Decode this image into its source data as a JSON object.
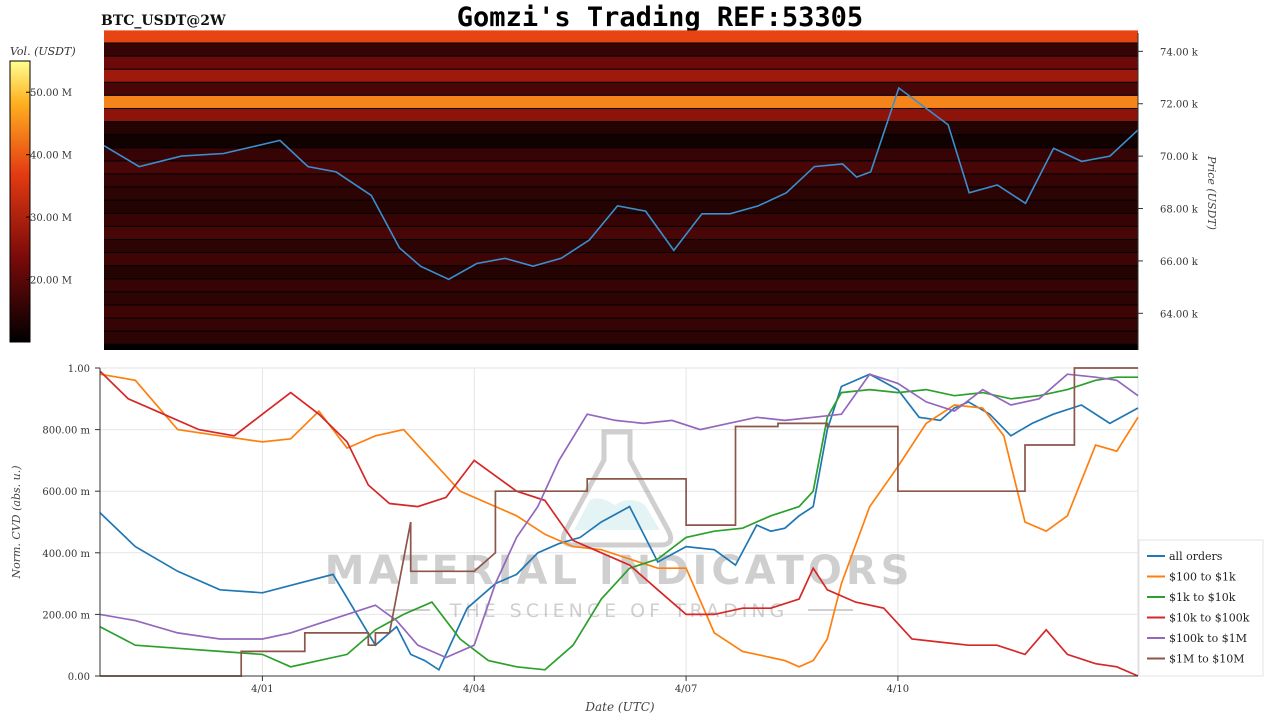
{
  "header": {
    "symbol": "BTC_USDT@2W",
    "title": "Gomzi's Trading REF:53305"
  },
  "watermark": {
    "brand": "MATERIAL INDICATORS",
    "tagline": "THE SCIENCE OF TRADING"
  },
  "colors": {
    "price_line": "#3a8fd0",
    "heatmap_bg": "#000000",
    "series": [
      "#1f77b4",
      "#ff7f0e",
      "#2ca02c",
      "#d62728",
      "#9467bd",
      "#8c564b"
    ]
  },
  "chart_data": [
    {
      "type": "heatmap",
      "title": "BTC_USDT@2W",
      "colorbar": {
        "label": "Vol. (USDT)",
        "ticks": [
          "50.00 M",
          "40.00 M",
          "30.00 M",
          "20.00 M"
        ],
        "tick_values": [
          50,
          40,
          30,
          20
        ],
        "range": [
          10,
          55
        ]
      },
      "ylabel": "Price (USDT)",
      "yticks": [
        "74.00 k",
        "72.00 k",
        "70.00 k",
        "68.00 k",
        "66.00 k",
        "64.00 k"
      ],
      "ytick_values": [
        74,
        72,
        70,
        68,
        66,
        64
      ],
      "ylim": [
        62.6,
        74.7
      ],
      "xlim": [
        -2.3,
        12.4
      ],
      "bands": [
        {
          "y": 74.55,
          "v": 38
        },
        {
          "y": 74.05,
          "v": 16
        },
        {
          "y": 73.55,
          "v": 22
        },
        {
          "y": 73.05,
          "v": 28
        },
        {
          "y": 72.55,
          "v": 18
        },
        {
          "y": 72.05,
          "v": 44
        },
        {
          "y": 71.55,
          "v": 26
        },
        {
          "y": 71.05,
          "v": 14
        },
        {
          "y": 70.55,
          "v": 12
        },
        {
          "y": 70.05,
          "v": 16
        },
        {
          "y": 69.55,
          "v": 18
        },
        {
          "y": 69.05,
          "v": 16
        },
        {
          "y": 68.55,
          "v": 15
        },
        {
          "y": 68.05,
          "v": 14
        },
        {
          "y": 67.55,
          "v": 16
        },
        {
          "y": 67.05,
          "v": 18
        },
        {
          "y": 66.55,
          "v": 15
        },
        {
          "y": 66.05,
          "v": 17
        },
        {
          "y": 65.55,
          "v": 14
        },
        {
          "y": 65.05,
          "v": 16
        },
        {
          "y": 64.55,
          "v": 15
        },
        {
          "y": 64.05,
          "v": 17
        },
        {
          "y": 63.55,
          "v": 16
        },
        {
          "y": 63.05,
          "v": 15
        }
      ],
      "price": {
        "x": [
          -2.3,
          -1.8,
          -1.2,
          -0.6,
          0.2,
          0.6,
          1.0,
          1.5,
          1.9,
          2.2,
          2.6,
          3.0,
          3.4,
          3.8,
          4.2,
          4.6,
          5.0,
          5.4,
          5.8,
          6.2,
          6.6,
          7.0,
          7.4,
          7.8,
          8.2,
          8.4,
          8.6,
          9.0,
          9.4,
          9.7,
          10.0,
          10.4,
          10.8,
          11.2,
          11.6,
          12.0,
          12.4
        ],
        "y": [
          70.4,
          69.6,
          70.0,
          70.1,
          70.6,
          69.6,
          69.4,
          68.5,
          66.5,
          65.8,
          65.3,
          65.9,
          66.1,
          65.8,
          66.1,
          66.8,
          68.1,
          67.9,
          66.4,
          67.8,
          67.8,
          68.1,
          68.6,
          69.6,
          69.7,
          69.2,
          69.4,
          72.6,
          71.8,
          71.2,
          68.6,
          68.9,
          68.2,
          70.3,
          69.8,
          70.0,
          71.0
        ]
      }
    },
    {
      "type": "line",
      "xlabel": "Date (UTC)",
      "ylabel": "Norm. CVD (abs. u.)",
      "xticks": [
        "4/01",
        "4/04",
        "4/07",
        "4/10"
      ],
      "xtick_values": [
        0,
        3,
        6,
        9
      ],
      "xlim": [
        -2.3,
        12.4
      ],
      "yticks": [
        "1.00",
        "800.00 m",
        "600.00 m",
        "400.00 m",
        "200.00 m",
        "0.00"
      ],
      "ytick_values": [
        1.0,
        0.8,
        0.6,
        0.4,
        0.2,
        0.0
      ],
      "ylim": [
        0,
        1
      ],
      "grid": true,
      "legend": "bottom-right",
      "series": [
        {
          "name": "all orders",
          "x": [
            -2.3,
            -1.8,
            -1.2,
            -0.6,
            0.0,
            0.5,
            1.0,
            1.6,
            1.9,
            2.1,
            2.3,
            2.5,
            2.9,
            3.3,
            3.6,
            3.9,
            4.2,
            4.5,
            4.8,
            5.2,
            5.6,
            6.0,
            6.4,
            6.7,
            7.0,
            7.2,
            7.4,
            7.6,
            7.8,
            8.0,
            8.2,
            8.6,
            9.0,
            9.3,
            9.6,
            9.8,
            10.0,
            10.3,
            10.6,
            10.9,
            11.2,
            11.6,
            12.0,
            12.4
          ],
          "y": [
            0.53,
            0.42,
            0.34,
            0.28,
            0.27,
            0.3,
            0.33,
            0.1,
            0.16,
            0.07,
            0.05,
            0.02,
            0.22,
            0.3,
            0.33,
            0.4,
            0.43,
            0.45,
            0.5,
            0.55,
            0.37,
            0.42,
            0.41,
            0.36,
            0.49,
            0.47,
            0.48,
            0.52,
            0.55,
            0.8,
            0.94,
            0.98,
            0.93,
            0.84,
            0.83,
            0.87,
            0.89,
            0.85,
            0.78,
            0.82,
            0.85,
            0.88,
            0.82,
            0.87
          ]
        },
        {
          "name": "$100 to $1k",
          "x": [
            -2.3,
            -1.8,
            -1.2,
            -0.6,
            0.0,
            0.4,
            0.8,
            1.2,
            1.6,
            2.0,
            2.4,
            2.8,
            3.2,
            3.6,
            4.0,
            4.4,
            4.8,
            5.2,
            5.6,
            6.0,
            6.4,
            6.8,
            7.0,
            7.2,
            7.4,
            7.6,
            7.8,
            8.0,
            8.2,
            8.6,
            9.0,
            9.4,
            9.8,
            10.2,
            10.5,
            10.8,
            11.1,
            11.4,
            11.8,
            12.1,
            12.4
          ],
          "y": [
            0.98,
            0.96,
            0.8,
            0.78,
            0.76,
            0.77,
            0.86,
            0.74,
            0.78,
            0.8,
            0.7,
            0.6,
            0.56,
            0.52,
            0.46,
            0.42,
            0.41,
            0.38,
            0.35,
            0.35,
            0.14,
            0.08,
            0.07,
            0.06,
            0.05,
            0.03,
            0.05,
            0.12,
            0.3,
            0.55,
            0.68,
            0.82,
            0.88,
            0.87,
            0.78,
            0.5,
            0.47,
            0.52,
            0.75,
            0.73,
            0.84
          ]
        },
        {
          "name": "$1k to $10k",
          "x": [
            -2.3,
            -1.8,
            -1.2,
            -0.6,
            0.0,
            0.4,
            0.8,
            1.2,
            1.6,
            2.0,
            2.4,
            2.8,
            3.2,
            3.6,
            4.0,
            4.4,
            4.8,
            5.2,
            5.6,
            6.0,
            6.4,
            6.8,
            7.2,
            7.6,
            7.8,
            8.0,
            8.2,
            8.6,
            9.0,
            9.4,
            9.8,
            10.2,
            10.6,
            11.0,
            11.4,
            11.8,
            12.1,
            12.4
          ],
          "y": [
            0.16,
            0.1,
            0.09,
            0.08,
            0.07,
            0.03,
            0.05,
            0.07,
            0.15,
            0.2,
            0.24,
            0.12,
            0.05,
            0.03,
            0.02,
            0.1,
            0.25,
            0.35,
            0.38,
            0.45,
            0.47,
            0.48,
            0.52,
            0.55,
            0.6,
            0.84,
            0.92,
            0.93,
            0.92,
            0.93,
            0.91,
            0.92,
            0.9,
            0.91,
            0.93,
            0.96,
            0.97,
            0.97
          ]
        },
        {
          "name": "$10k to $100k",
          "x": [
            -2.3,
            -1.9,
            -1.4,
            -0.9,
            -0.4,
            0.0,
            0.4,
            0.8,
            1.2,
            1.5,
            1.8,
            2.2,
            2.6,
            3.0,
            3.3,
            3.6,
            4.0,
            4.4,
            4.8,
            5.2,
            5.6,
            6.0,
            6.4,
            6.8,
            7.2,
            7.6,
            7.8,
            8.0,
            8.4,
            8.8,
            9.2,
            9.6,
            10.0,
            10.4,
            10.8,
            11.1,
            11.4,
            11.8,
            12.1,
            12.4
          ],
          "y": [
            0.99,
            0.9,
            0.85,
            0.8,
            0.78,
            0.85,
            0.92,
            0.85,
            0.76,
            0.62,
            0.56,
            0.55,
            0.58,
            0.7,
            0.65,
            0.6,
            0.57,
            0.44,
            0.4,
            0.36,
            0.28,
            0.2,
            0.2,
            0.22,
            0.22,
            0.25,
            0.35,
            0.28,
            0.24,
            0.22,
            0.12,
            0.11,
            0.1,
            0.1,
            0.07,
            0.15,
            0.07,
            0.04,
            0.03,
            0.0
          ]
        },
        {
          "name": "$100k to $1M",
          "x": [
            -2.3,
            -1.8,
            -1.2,
            -0.6,
            0.0,
            0.4,
            0.8,
            1.2,
            1.6,
            1.9,
            2.2,
            2.6,
            3.0,
            3.3,
            3.6,
            3.9,
            4.2,
            4.6,
            5.0,
            5.4,
            5.8,
            6.2,
            6.6,
            7.0,
            7.4,
            7.8,
            8.2,
            8.6,
            9.0,
            9.4,
            9.8,
            10.2,
            10.6,
            11.0,
            11.4,
            11.8,
            12.1,
            12.4
          ],
          "y": [
            0.2,
            0.18,
            0.14,
            0.12,
            0.12,
            0.14,
            0.17,
            0.2,
            0.23,
            0.18,
            0.1,
            0.06,
            0.1,
            0.3,
            0.45,
            0.55,
            0.7,
            0.85,
            0.83,
            0.82,
            0.83,
            0.8,
            0.82,
            0.84,
            0.83,
            0.84,
            0.85,
            0.98,
            0.95,
            0.89,
            0.86,
            0.93,
            0.88,
            0.9,
            0.98,
            0.97,
            0.96,
            0.91
          ]
        },
        {
          "name": "$1M to $10M",
          "x": [
            -2.3,
            -0.3,
            -0.3,
            0.0,
            0.6,
            0.6,
            1.5,
            1.5,
            1.6,
            1.6,
            1.8,
            2.1,
            2.1,
            3.0,
            3.0,
            3.3,
            3.3,
            4.0,
            4.0,
            4.6,
            4.6,
            6.0,
            6.0,
            6.7,
            6.7,
            7.3,
            7.3,
            8.0,
            8.0,
            9.0,
            9.0,
            10.0,
            10.0,
            10.8,
            10.8,
            11.5,
            11.5,
            12.4
          ],
          "y": [
            0.0,
            0.0,
            0.08,
            0.08,
            0.08,
            0.14,
            0.14,
            0.1,
            0.1,
            0.14,
            0.14,
            0.5,
            0.34,
            0.34,
            0.34,
            0.4,
            0.6,
            0.6,
            0.6,
            0.6,
            0.64,
            0.64,
            0.49,
            0.49,
            0.81,
            0.81,
            0.82,
            0.82,
            0.81,
            0.81,
            0.6,
            0.6,
            0.6,
            0.6,
            0.75,
            0.75,
            1.0,
            1.0
          ]
        }
      ]
    }
  ]
}
